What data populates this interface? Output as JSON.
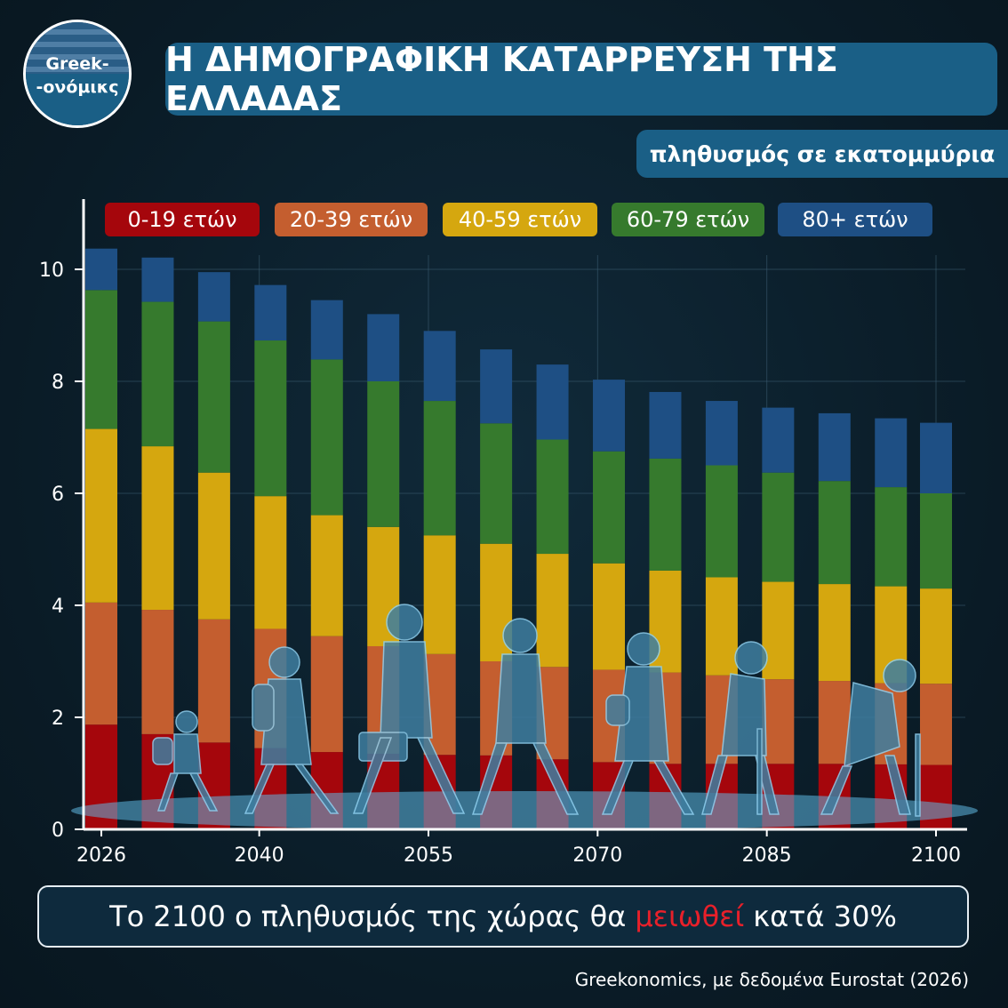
{
  "logo": {
    "line1": "Greek-",
    "line2": "-ονόμικς"
  },
  "header": {
    "title": "Η ΔΗΜΟΓΡΑΦΙΚΗ ΚΑΤΑΡΡΕΥΣΗ ΤΗΣ ΕΛΛΑΔΑΣ",
    "subtitle": "πληθυσμός σε εκατομμύρια"
  },
  "callout": {
    "before": "Το 2100 ο πληθυσμός της χώρας θα",
    "highlight": "μειωθεί",
    "after": "κατά 30%"
  },
  "source": "Greekonomics, με δεδομένα Eurostat (2026)",
  "colors": {
    "age_0_19": "#a5060c",
    "age_20_39": "#c45e2f",
    "age_40_59": "#d5a70f",
    "age_60_79": "#367a2d",
    "age_80_plus": "#1e4f84",
    "accent": "#1a5f86",
    "highlight": "#e8202a"
  },
  "chart_data": {
    "type": "bar",
    "stacked": true,
    "x_tick_labels": [
      "2026",
      "2040",
      "2055",
      "2070",
      "2085",
      "2100"
    ],
    "x": [
      2026,
      2031,
      2036,
      2041,
      2046,
      2051,
      2056,
      2061,
      2066,
      2071,
      2076,
      2081,
      2086,
      2091,
      2096,
      2100
    ],
    "series": [
      {
        "name": "0-19 ετών",
        "color_key": "age_0_19",
        "values": [
          1.87,
          1.7,
          1.55,
          1.45,
          1.38,
          1.35,
          1.33,
          1.32,
          1.25,
          1.2,
          1.17,
          1.17,
          1.17,
          1.17,
          1.16,
          1.15
        ]
      },
      {
        "name": "20-39 ετών",
        "color_key": "age_20_39",
        "values": [
          2.18,
          2.22,
          2.2,
          2.13,
          2.07,
          1.92,
          1.8,
          1.68,
          1.65,
          1.65,
          1.63,
          1.58,
          1.51,
          1.48,
          1.45,
          1.45
        ]
      },
      {
        "name": "40-59 ετών",
        "color_key": "age_40_59",
        "values": [
          3.1,
          2.92,
          2.62,
          2.37,
          2.16,
          2.13,
          2.12,
          2.1,
          2.02,
          1.9,
          1.82,
          1.75,
          1.74,
          1.73,
          1.73,
          1.7
        ]
      },
      {
        "name": "60-79 ετών",
        "color_key": "age_60_79",
        "values": [
          2.48,
          2.58,
          2.7,
          2.78,
          2.78,
          2.6,
          2.4,
          2.15,
          2.04,
          2.0,
          2.0,
          2.0,
          1.95,
          1.84,
          1.77,
          1.7
        ]
      },
      {
        "name": "80+ ετών",
        "color_key": "age_80_plus",
        "values": [
          0.74,
          0.79,
          0.88,
          0.99,
          1.06,
          1.2,
          1.25,
          1.32,
          1.34,
          1.28,
          1.19,
          1.15,
          1.16,
          1.21,
          1.23,
          1.26
        ]
      }
    ],
    "ylim": [
      0,
      11
    ],
    "y_ticks": [
      0,
      2,
      4,
      6,
      8,
      10
    ],
    "grid": true,
    "legend_position": "top"
  }
}
